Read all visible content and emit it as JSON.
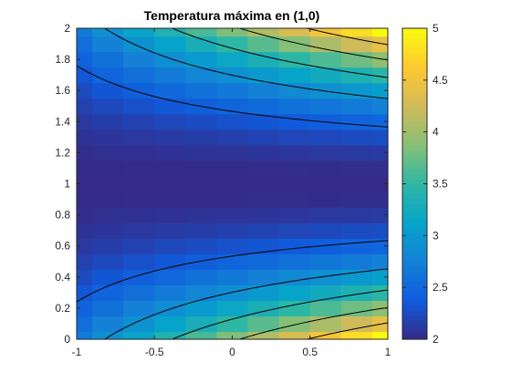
{
  "chart_data": {
    "type": "heatmap",
    "title": "Temperatura máxima en (1,0)",
    "xlabel": "",
    "ylabel": "",
    "xlim": [
      -1,
      1
    ],
    "ylim": [
      0,
      2
    ],
    "x_ticks": [
      "-1",
      "-0.5",
      "0",
      "0.5",
      "1"
    ],
    "y_ticks": [
      "0",
      "0.2",
      "0.4",
      "0.6",
      "0.8",
      "1",
      "1.2",
      "1.4",
      "1.6",
      "1.8",
      "2"
    ],
    "colorbar": {
      "range": [
        2,
        5
      ],
      "ticks": [
        "2",
        "2.5",
        "3",
        "3.5",
        "4",
        "4.5",
        "5"
      ],
      "colormap": "parula"
    },
    "grid": {
      "nx": 11,
      "ny": 21,
      "x_range": [
        -1,
        1
      ],
      "y_range": [
        0,
        2
      ],
      "value_model": "v = 2 + 3 * |y - 1|^2 * (x + 1.6) / 2.6"
    },
    "contour_levels": [
      2.4,
      2.9,
      3.4,
      3.9,
      4.4
    ],
    "contour_color": "#000000",
    "colors": {
      "parula_stops": [
        "#352A87",
        "#0F5CDD",
        "#1481D6",
        "#06A4CA",
        "#2EB7A4",
        "#87BF77",
        "#D1BB59",
        "#FEC832",
        "#F9FB0E"
      ]
    }
  }
}
